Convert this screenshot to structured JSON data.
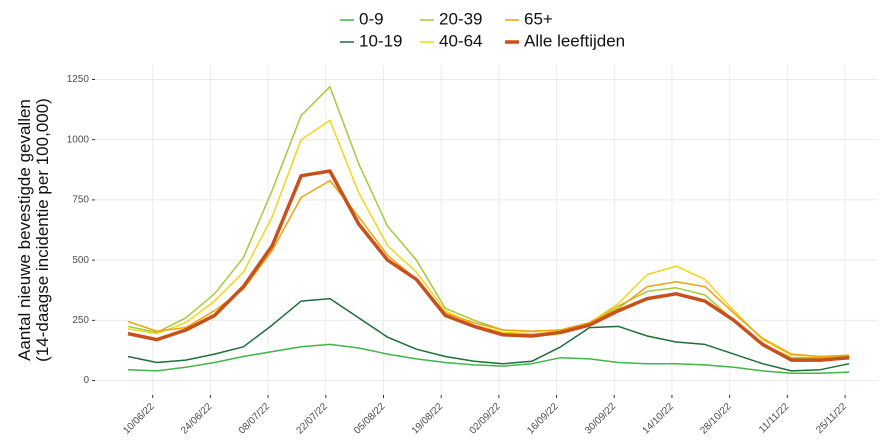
{
  "chart_data": {
    "type": "line",
    "ylabel": [
      "Aantal nieuwe bevestigde gevallen",
      "(14-daagse incidentie per 100,000)"
    ],
    "x": [
      "04/06/22",
      "11/06/22",
      "18/06/22",
      "25/06/22",
      "02/07/22",
      "09/07/22",
      "16/07/22",
      "23/07/22",
      "30/07/22",
      "06/08/22",
      "13/08/22",
      "20/08/22",
      "27/08/22",
      "03/09/22",
      "10/09/22",
      "17/09/22",
      "24/09/22",
      "01/10/22",
      "08/10/22",
      "15/10/22",
      "22/10/22",
      "29/10/22",
      "05/11/22",
      "12/11/22",
      "19/11/22",
      "26/11/22"
    ],
    "series": [
      {
        "name": "0-9",
        "color": "#41b649",
        "width": 1.5,
        "values": [
          45,
          40,
          55,
          75,
          100,
          120,
          140,
          150,
          135,
          110,
          90,
          75,
          65,
          60,
          70,
          95,
          90,
          75,
          70,
          70,
          65,
          55,
          40,
          30,
          30,
          35
        ]
      },
      {
        "name": "10-19",
        "color": "#1e6e3c",
        "width": 1.5,
        "values": [
          100,
          75,
          85,
          110,
          140,
          230,
          330,
          340,
          260,
          180,
          130,
          100,
          80,
          70,
          80,
          140,
          220,
          225,
          185,
          160,
          150,
          110,
          70,
          40,
          45,
          70
        ]
      },
      {
        "name": "20-39",
        "color": "#a6c93a",
        "width": 1.5,
        "values": [
          225,
          200,
          260,
          360,
          510,
          790,
          1100,
          1220,
          900,
          640,
          500,
          300,
          250,
          210,
          205,
          210,
          240,
          310,
          370,
          385,
          355,
          250,
          150,
          95,
          95,
          100
        ]
      },
      {
        "name": "40-64",
        "color": "#f5d519",
        "width": 1.5,
        "values": [
          215,
          195,
          240,
          330,
          450,
          680,
          1000,
          1080,
          780,
          560,
          450,
          290,
          230,
          200,
          195,
          200,
          240,
          320,
          440,
          475,
          420,
          290,
          170,
          105,
          100,
          105
        ]
      },
      {
        "name": "65+",
        "color": "#f0a30a",
        "width": 1.5,
        "values": [
          245,
          205,
          220,
          290,
          380,
          540,
          760,
          830,
          680,
          520,
          420,
          280,
          240,
          210,
          205,
          210,
          240,
          300,
          390,
          410,
          390,
          280,
          175,
          110,
          100,
          105
        ]
      },
      {
        "name": "Alle leeftijden",
        "color": "#c8501a",
        "width": 3.5,
        "values": [
          195,
          170,
          210,
          270,
          390,
          560,
          850,
          870,
          650,
          500,
          420,
          270,
          225,
          190,
          185,
          200,
          230,
          290,
          340,
          360,
          330,
          250,
          150,
          85,
          85,
          95
        ]
      }
    ],
    "xlim": [
      "27/05/22",
      "03/12/22"
    ],
    "xticks": [
      "10/06/22",
      "24/06/22",
      "08/07/22",
      "22/07/22",
      "05/08/22",
      "19/08/22",
      "02/09/22",
      "16/09/22",
      "30/09/22",
      "14/10/22",
      "28/10/22",
      "11/11/22",
      "25/11/22"
    ],
    "ylim": [
      -60,
      1310
    ],
    "yticks": [
      0,
      250,
      500,
      750,
      1000,
      1250
    ],
    "grid": true,
    "legend": "top"
  }
}
